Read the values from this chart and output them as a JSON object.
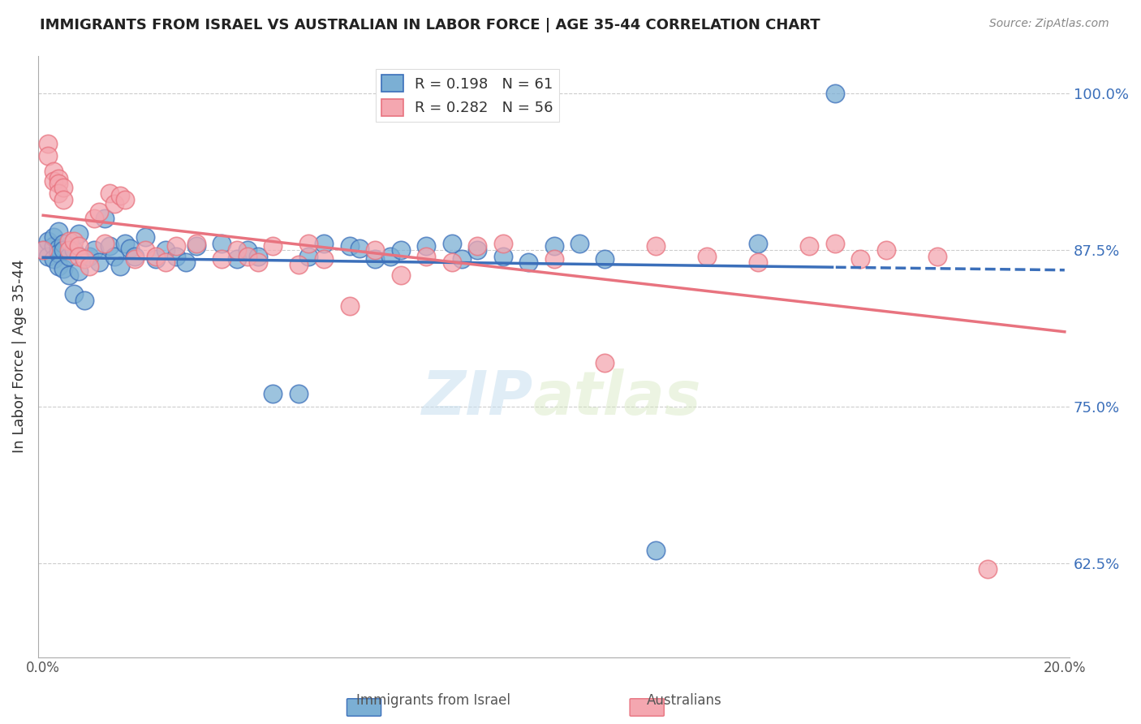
{
  "title": "IMMIGRANTS FROM ISRAEL VS AUSTRALIAN IN LABOR FORCE | AGE 35-44 CORRELATION CHART",
  "source": "Source: ZipAtlas.com",
  "ylabel": "In Labor Force | Age 35-44",
  "x_min": 0.0,
  "x_max": 0.2,
  "y_min": 0.55,
  "y_max": 1.03,
  "y_ticks": [
    0.625,
    0.75,
    0.875,
    1.0
  ],
  "y_tick_labels": [
    "62.5%",
    "75.0%",
    "87.5%",
    "100.0%"
  ],
  "x_ticks": [
    0.0,
    0.05,
    0.1,
    0.15,
    0.2
  ],
  "x_tick_labels": [
    "0.0%",
    "",
    "",
    "",
    "20.0%"
  ],
  "R_israel": 0.198,
  "N_israel": 61,
  "R_aus": 0.282,
  "N_aus": 56,
  "color_israel": "#7bafd4",
  "color_aus": "#f4a7b0",
  "line_color_israel": "#3b6fba",
  "line_color_aus": "#e8737f",
  "watermark_zip": "ZIP",
  "watermark_atlas": "atlas",
  "israel_x": [
    0.0,
    0.001,
    0.001,
    0.002,
    0.002,
    0.002,
    0.003,
    0.003,
    0.003,
    0.003,
    0.004,
    0.004,
    0.004,
    0.005,
    0.005,
    0.006,
    0.006,
    0.007,
    0.007,
    0.008,
    0.009,
    0.01,
    0.011,
    0.012,
    0.013,
    0.014,
    0.015,
    0.016,
    0.017,
    0.018,
    0.02,
    0.022,
    0.024,
    0.026,
    0.028,
    0.03,
    0.035,
    0.038,
    0.04,
    0.042,
    0.045,
    0.05,
    0.052,
    0.055,
    0.06,
    0.062,
    0.065,
    0.068,
    0.07,
    0.075,
    0.08,
    0.082,
    0.085,
    0.09,
    0.095,
    0.1,
    0.105,
    0.11,
    0.12,
    0.14,
    0.155
  ],
  "israel_y": [
    0.875,
    0.882,
    0.87,
    0.878,
    0.885,
    0.868,
    0.89,
    0.876,
    0.872,
    0.862,
    0.88,
    0.875,
    0.86,
    0.87,
    0.855,
    0.875,
    0.84,
    0.888,
    0.858,
    0.835,
    0.87,
    0.875,
    0.865,
    0.9,
    0.878,
    0.87,
    0.862,
    0.88,
    0.876,
    0.87,
    0.885,
    0.868,
    0.875,
    0.87,
    0.865,
    0.878,
    0.88,
    0.868,
    0.875,
    0.87,
    0.76,
    0.76,
    0.87,
    0.88,
    0.878,
    0.876,
    0.868,
    0.87,
    0.875,
    0.878,
    0.88,
    0.868,
    0.875,
    0.87,
    0.865,
    0.878,
    0.88,
    0.868,
    0.635,
    0.88,
    1.0
  ],
  "aus_x": [
    0.0,
    0.001,
    0.001,
    0.002,
    0.002,
    0.003,
    0.003,
    0.003,
    0.004,
    0.004,
    0.005,
    0.005,
    0.006,
    0.007,
    0.007,
    0.008,
    0.009,
    0.01,
    0.011,
    0.012,
    0.013,
    0.014,
    0.015,
    0.016,
    0.018,
    0.02,
    0.022,
    0.024,
    0.026,
    0.03,
    0.035,
    0.038,
    0.04,
    0.042,
    0.045,
    0.05,
    0.052,
    0.055,
    0.06,
    0.065,
    0.07,
    0.075,
    0.08,
    0.085,
    0.09,
    0.1,
    0.11,
    0.12,
    0.13,
    0.14,
    0.15,
    0.155,
    0.16,
    0.165,
    0.175,
    0.185
  ],
  "aus_y": [
    0.875,
    0.96,
    0.95,
    0.938,
    0.93,
    0.932,
    0.928,
    0.92,
    0.925,
    0.915,
    0.882,
    0.875,
    0.882,
    0.878,
    0.87,
    0.868,
    0.862,
    0.9,
    0.905,
    0.88,
    0.92,
    0.912,
    0.918,
    0.915,
    0.868,
    0.875,
    0.87,
    0.865,
    0.878,
    0.88,
    0.868,
    0.875,
    0.87,
    0.865,
    0.878,
    0.863,
    0.88,
    0.868,
    0.83,
    0.875,
    0.855,
    0.87,
    0.865,
    0.878,
    0.88,
    0.868,
    0.785,
    0.878,
    0.87,
    0.865,
    0.878,
    0.88,
    0.868,
    0.875,
    0.87,
    0.62
  ]
}
